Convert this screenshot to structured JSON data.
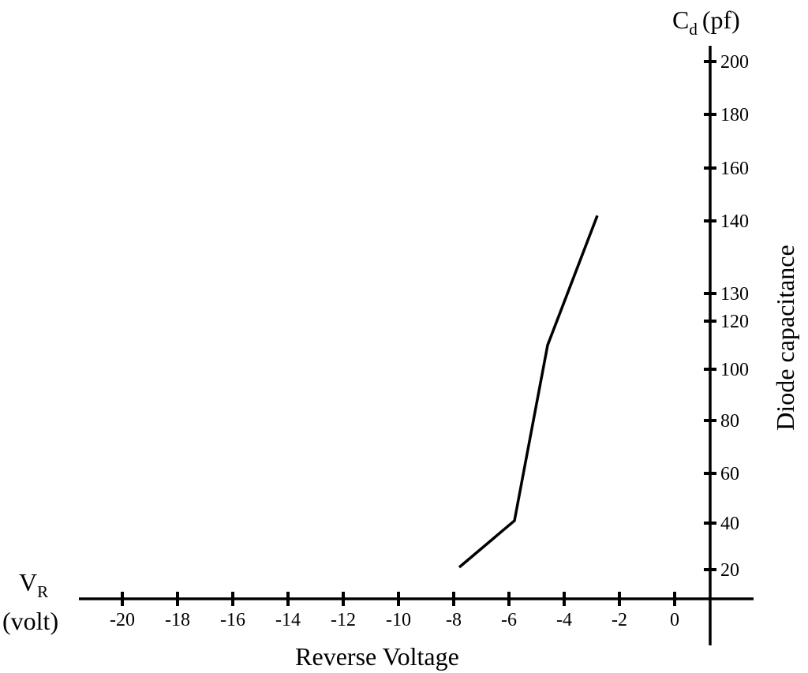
{
  "chart_data": {
    "type": "line",
    "title": "",
    "xlabel": "Reverse Voltage",
    "x_symbol": "V",
    "x_symbol_sub": "R",
    "x_unit": "(volt)",
    "ylabel": "Diode capacitance",
    "y_symbol": "C",
    "y_symbol_sub": "d",
    "y_unit": "(pf)",
    "x_ticks": [
      "-20",
      "-18",
      "-16",
      "-14",
      "-12",
      "-10",
      "-8",
      "-6",
      "-4",
      "-2",
      "0"
    ],
    "y_ticks": [
      "20",
      "40",
      "60",
      "80",
      "100",
      "120",
      "130",
      "140",
      "160",
      "180",
      "200"
    ],
    "grid": false,
    "series": [
      {
        "x": [
          -7.8,
          -5.8,
          -4.6,
          -2.8
        ],
        "y": [
          21,
          41,
          110,
          142
        ]
      }
    ]
  }
}
